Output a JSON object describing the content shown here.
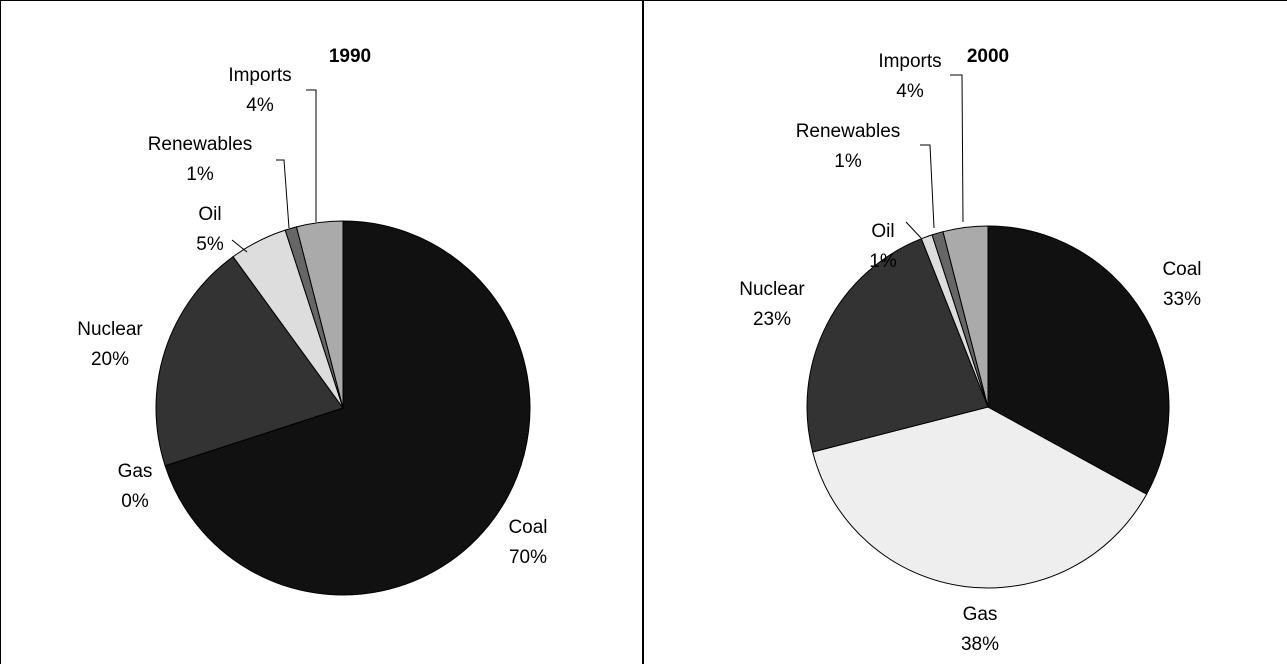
{
  "chart_data": [
    {
      "type": "pie",
      "title": "1990",
      "categories": [
        "Coal",
        "Gas",
        "Nuclear",
        "Oil",
        "Renewables",
        "Imports"
      ],
      "values": [
        70,
        0,
        20,
        5,
        1,
        4
      ],
      "value_labels": [
        "70%",
        "0%",
        "20%",
        "5%",
        "1%",
        "4%"
      ],
      "colors": [
        "#111111",
        "#eeeeee",
        "#333333",
        "#dddddd",
        "#666666",
        "#aaaaaa"
      ]
    },
    {
      "type": "pie",
      "title": "2000",
      "categories": [
        "Coal",
        "Gas",
        "Nuclear",
        "Oil",
        "Renewables",
        "Imports"
      ],
      "values": [
        33,
        38,
        23,
        1,
        1,
        4
      ],
      "value_labels": [
        "33%",
        "38%",
        "23%",
        "1%",
        "1%",
        "4%"
      ],
      "colors": [
        "#111111",
        "#eeeeee",
        "#333333",
        "#dddddd",
        "#666666",
        "#aaaaaa"
      ]
    }
  ]
}
